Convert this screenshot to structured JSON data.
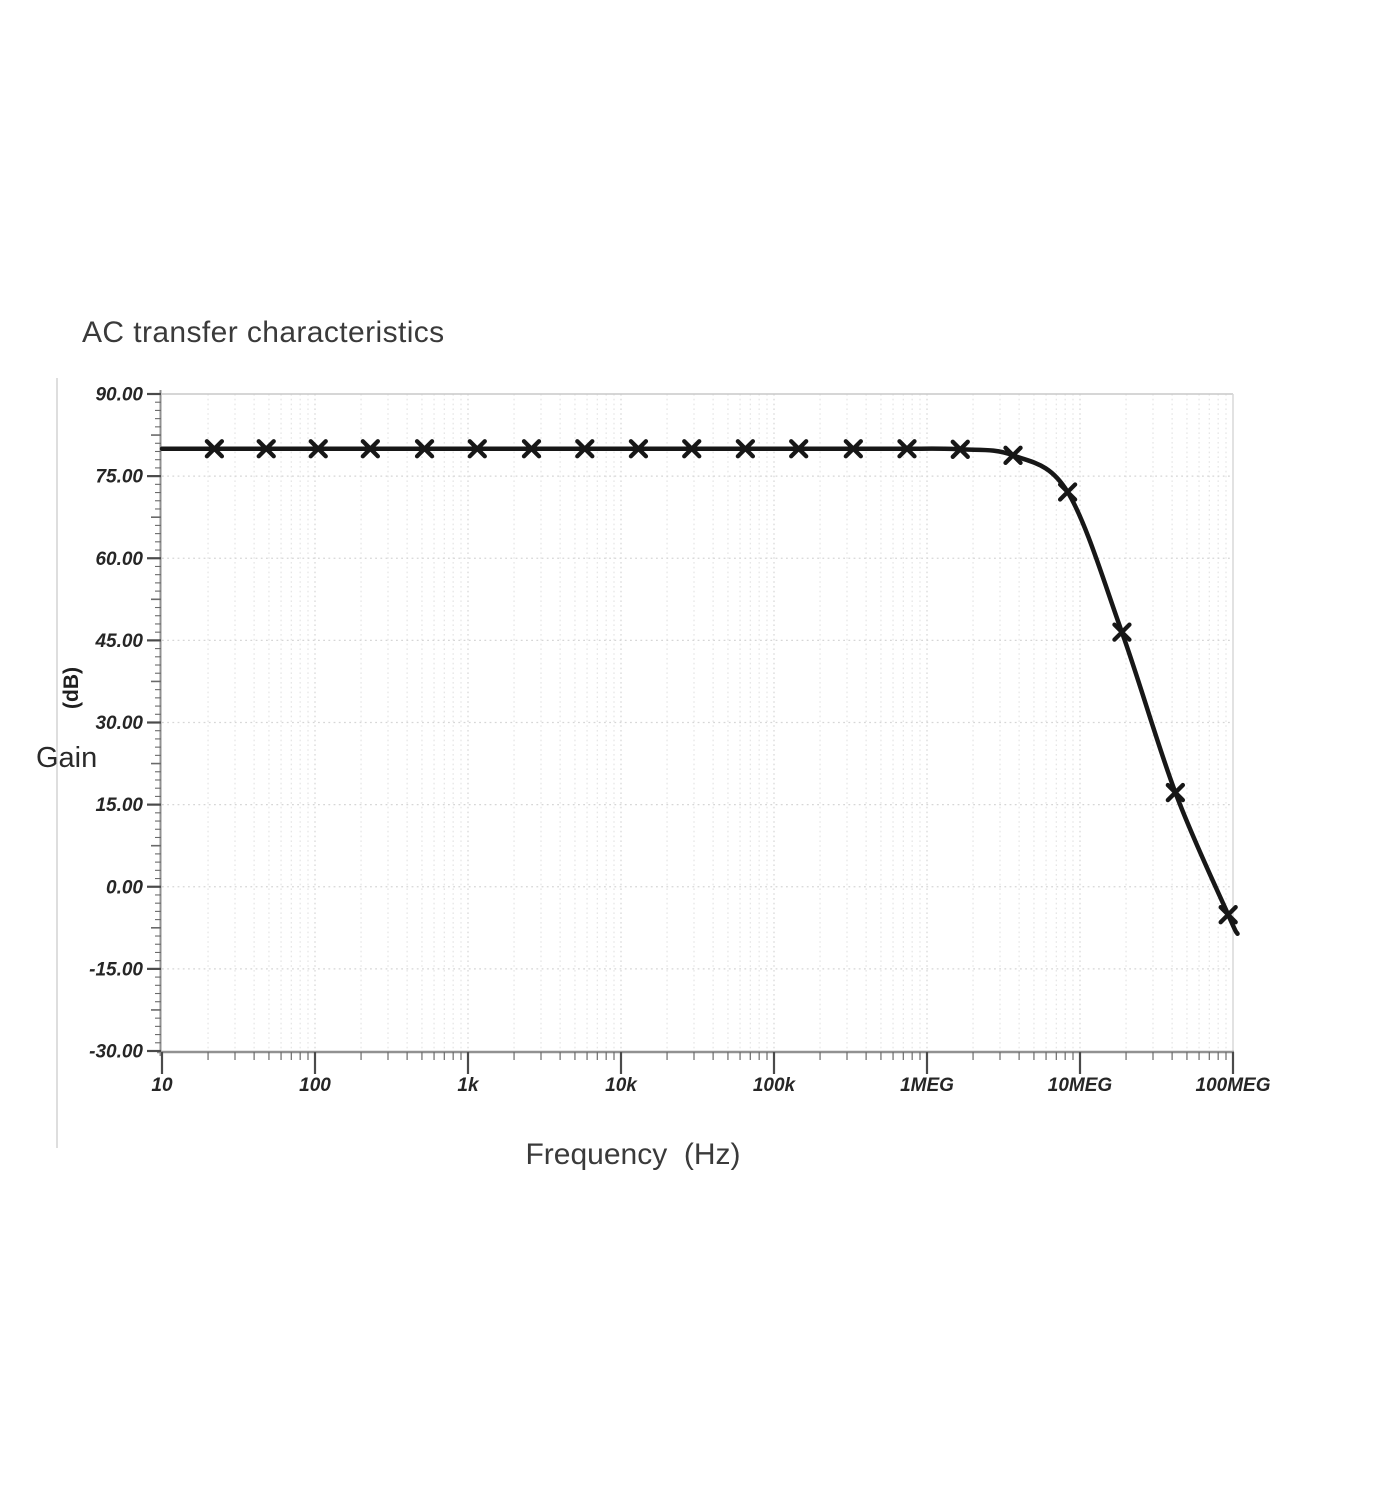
{
  "title": "AC transfer characteristics",
  "axes": {
    "y_unit_label": "(dB)",
    "y_name_label": "Gain",
    "x_label": "Frequency  (Hz)",
    "y_tick_labels": [
      "90.00",
      "75.00",
      "60.00",
      "45.00",
      "30.00",
      "15.00",
      "0.00",
      "-15.00",
      "-30.00"
    ],
    "x_tick_labels": [
      "10",
      "100",
      "1k",
      "10k",
      "100k",
      "1MEG",
      "10MEG",
      "100MEG"
    ]
  },
  "chart_data": {
    "type": "line",
    "title": "AC transfer characteristics",
    "xlabel": "Frequency (Hz)",
    "ylabel": "Gain (dB)",
    "x_scale": "log",
    "xlim": [
      10,
      100000000
    ],
    "ylim": [
      -30,
      90
    ],
    "y_tick_step": 15,
    "grid": true,
    "legend": "none",
    "series": [
      {
        "name": "Gain",
        "marker": "x",
        "color": "#161616",
        "flat_gain_db": 80,
        "curve_start": [
          10,
          80
        ],
        "points": [
          [
            22,
            80
          ],
          [
            48,
            80
          ],
          [
            105,
            80
          ],
          [
            230,
            80
          ],
          [
            520,
            80
          ],
          [
            1150,
            80
          ],
          [
            2600,
            80
          ],
          [
            5800,
            80
          ],
          [
            13000,
            80
          ],
          [
            29000,
            80
          ],
          [
            65000,
            80
          ],
          [
            145000,
            80
          ],
          [
            330000,
            80
          ],
          [
            740000,
            80
          ],
          [
            1650000,
            79.9
          ],
          [
            3650000,
            78.8
          ],
          [
            8300000,
            72.1
          ],
          [
            18800000,
            46.5
          ],
          [
            42000000,
            17.2
          ],
          [
            93000000,
            -5.1
          ]
        ],
        "curve_end": [
          107000000,
          -8.6
        ]
      }
    ]
  },
  "colors": {
    "background": "#ffffff",
    "curve": "#171717",
    "axis": "#919191",
    "tick_major": "#4a4a4a",
    "tick_minor": "#6a6a6a",
    "tick_label": "#262626",
    "grid_major": "#d6d6d6",
    "grid_minor": "#e4e4e4",
    "border_top": "#c8c8c8",
    "border_right": "#d8d8d8",
    "text": "#3a3a3a",
    "divider": "#dedede"
  }
}
